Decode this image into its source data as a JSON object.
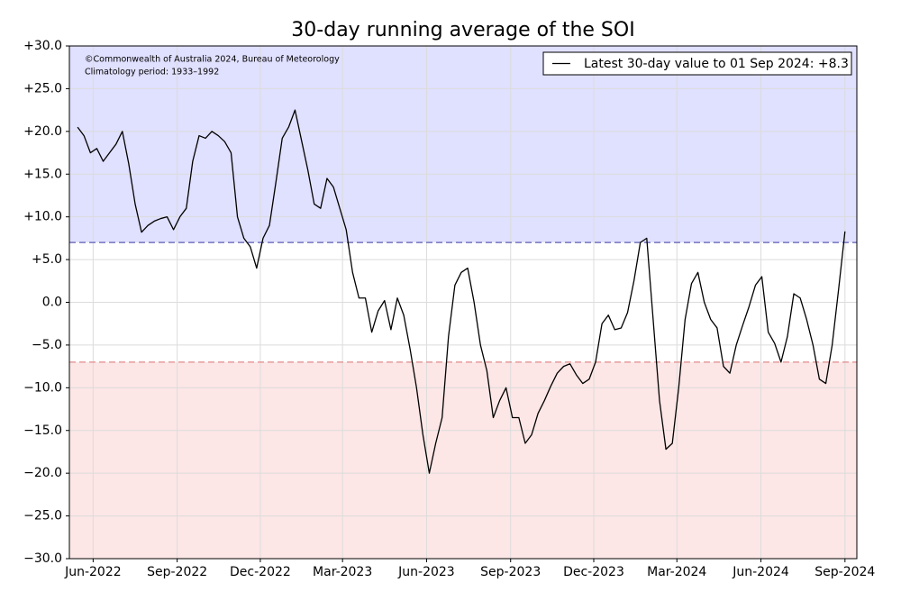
{
  "chart_data": {
    "type": "line",
    "title": "30-day running average of the SOI",
    "annotations": [
      "©Commonwealth of Australia 2024, Bureau of Meteorology",
      "Climatology period: 1933–1992"
    ],
    "x": [
      "2022-05-15",
      "2022-05-22",
      "2022-05-29",
      "2022-06-05",
      "2022-06-12",
      "2022-06-19",
      "2022-06-26",
      "2022-07-03",
      "2022-07-10",
      "2022-07-17",
      "2022-07-24",
      "2022-07-31",
      "2022-08-07",
      "2022-08-14",
      "2022-08-21",
      "2022-08-28",
      "2022-09-04",
      "2022-09-11",
      "2022-09-18",
      "2022-09-25",
      "2022-10-02",
      "2022-10-09",
      "2022-10-16",
      "2022-10-23",
      "2022-10-30",
      "2022-11-06",
      "2022-11-13",
      "2022-11-20",
      "2022-11-27",
      "2022-12-04",
      "2022-12-11",
      "2022-12-18",
      "2022-12-25",
      "2023-01-01",
      "2023-01-08",
      "2023-01-15",
      "2023-01-22",
      "2023-01-29",
      "2023-02-05",
      "2023-02-12",
      "2023-02-19",
      "2023-02-26",
      "2023-03-05",
      "2023-03-12",
      "2023-03-19",
      "2023-03-26",
      "2023-04-02",
      "2023-04-09",
      "2023-04-16",
      "2023-04-23",
      "2023-04-30",
      "2023-05-07",
      "2023-05-14",
      "2023-05-21",
      "2023-05-28",
      "2023-06-04",
      "2023-06-11",
      "2023-06-18",
      "2023-06-25",
      "2023-07-02",
      "2023-07-09",
      "2023-07-16",
      "2023-07-23",
      "2023-07-30",
      "2023-08-06",
      "2023-08-13",
      "2023-08-20",
      "2023-08-27",
      "2023-09-03",
      "2023-09-10",
      "2023-09-17",
      "2023-09-24",
      "2023-10-01",
      "2023-10-08",
      "2023-10-15",
      "2023-10-22",
      "2023-10-29",
      "2023-11-05",
      "2023-11-12",
      "2023-11-19",
      "2023-11-26",
      "2023-12-03",
      "2023-12-10",
      "2023-12-17",
      "2023-12-24",
      "2023-12-31",
      "2024-01-07",
      "2024-01-14",
      "2024-01-21",
      "2024-01-28",
      "2024-02-04",
      "2024-02-11",
      "2024-02-18",
      "2024-02-25",
      "2024-03-03",
      "2024-03-10",
      "2024-03-17",
      "2024-03-24",
      "2024-03-31",
      "2024-04-07",
      "2024-04-14",
      "2024-04-21",
      "2024-04-28",
      "2024-05-05",
      "2024-05-12",
      "2024-05-19",
      "2024-05-26",
      "2024-06-02",
      "2024-06-09",
      "2024-06-16",
      "2024-06-23",
      "2024-06-30",
      "2024-07-07",
      "2024-07-14",
      "2024-07-21",
      "2024-07-28",
      "2024-08-04",
      "2024-08-11",
      "2024-08-18",
      "2024-08-25",
      "2024-09-01"
    ],
    "series": [
      {
        "name": "Latest 30-day value to 01 Sep 2024: +8.3",
        "color": "#000000",
        "values": [
          20.5,
          19.5,
          17.5,
          18,
          16.5,
          17.5,
          18.5,
          20,
          16.2,
          11.5,
          8.2,
          9,
          9.5,
          9.8,
          10,
          8.5,
          10,
          11,
          16.5,
          19.5,
          19.2,
          20,
          19.5,
          18.8,
          17.5,
          10,
          7.5,
          6.5,
          4,
          7.5,
          9,
          14,
          19.2,
          20.5,
          22.5,
          19,
          15.5,
          11.5,
          11,
          14.5,
          13.5,
          11,
          8.5,
          3.5,
          0.5,
          0.5,
          -3.5,
          -1,
          0.2,
          -3.2,
          0.5,
          -1.5,
          -5.5,
          -10,
          -15.5,
          -20,
          -16.5,
          -13.5,
          -4,
          2,
          3.5,
          4,
          0,
          -5,
          -8,
          -13.5,
          -11.5,
          -10,
          -13.5,
          -13.5,
          -16.5,
          -15.5,
          -13,
          -11.5,
          -9.8,
          -8.3,
          -7.5,
          -7.2,
          -8.5,
          -9.5,
          -9,
          -7,
          -2.5,
          -1.5,
          -3.2,
          -3,
          -1.2,
          2.5,
          7,
          7.5,
          -2,
          -11.5,
          -17.2,
          -16.5,
          -10,
          -2,
          2.2,
          3.5,
          0,
          -2,
          -3,
          -7.5,
          -8.3,
          -5,
          -2.7,
          -0.5,
          2,
          3,
          -3.5,
          -4.8,
          -7,
          -4,
          1,
          0.5,
          -2,
          -5,
          -9,
          -9.5,
          -5,
          1.5,
          8.3
        ]
      }
    ],
    "xlim": [
      "2022-05-06",
      "2024-09-14"
    ],
    "xticks": [
      {
        "value": "2022-06-01",
        "label": "Jun-2022"
      },
      {
        "value": "2022-09-01",
        "label": "Sep-2022"
      },
      {
        "value": "2022-12-01",
        "label": "Dec-2022"
      },
      {
        "value": "2023-03-01",
        "label": "Mar-2023"
      },
      {
        "value": "2023-06-01",
        "label": "Jun-2023"
      },
      {
        "value": "2023-09-01",
        "label": "Sep-2023"
      },
      {
        "value": "2023-12-01",
        "label": "Dec-2023"
      },
      {
        "value": "2024-03-01",
        "label": "Mar-2024"
      },
      {
        "value": "2024-06-01",
        "label": "Jun-2024"
      },
      {
        "value": "2024-09-01",
        "label": "Sep-2024"
      }
    ],
    "ylim": [
      -30,
      30
    ],
    "yticks": [
      {
        "value": 30,
        "label": "+30.0"
      },
      {
        "value": 25,
        "label": "+25.0"
      },
      {
        "value": 20,
        "label": "+20.0"
      },
      {
        "value": 15,
        "label": "+15.0"
      },
      {
        "value": 10,
        "label": "+10.0"
      },
      {
        "value": 5,
        "label": "+5.0"
      },
      {
        "value": 0,
        "label": "0.0"
      },
      {
        "value": -5,
        "label": "−5.0"
      },
      {
        "value": -10,
        "label": "−10.0"
      },
      {
        "value": -15,
        "label": "−15.0"
      },
      {
        "value": -20,
        "label": "−20.0"
      },
      {
        "value": -25,
        "label": "−25.0"
      },
      {
        "value": -30,
        "label": "−30.0"
      }
    ],
    "grid": true,
    "legend": "upper right",
    "upper_threshold": {
      "value": 7,
      "fill": "#e0e0ff",
      "line_color": "#5c5cb0"
    },
    "lower_threshold": {
      "value": -7,
      "fill": "#fde6e6",
      "line_color": "#e08a8a"
    }
  }
}
